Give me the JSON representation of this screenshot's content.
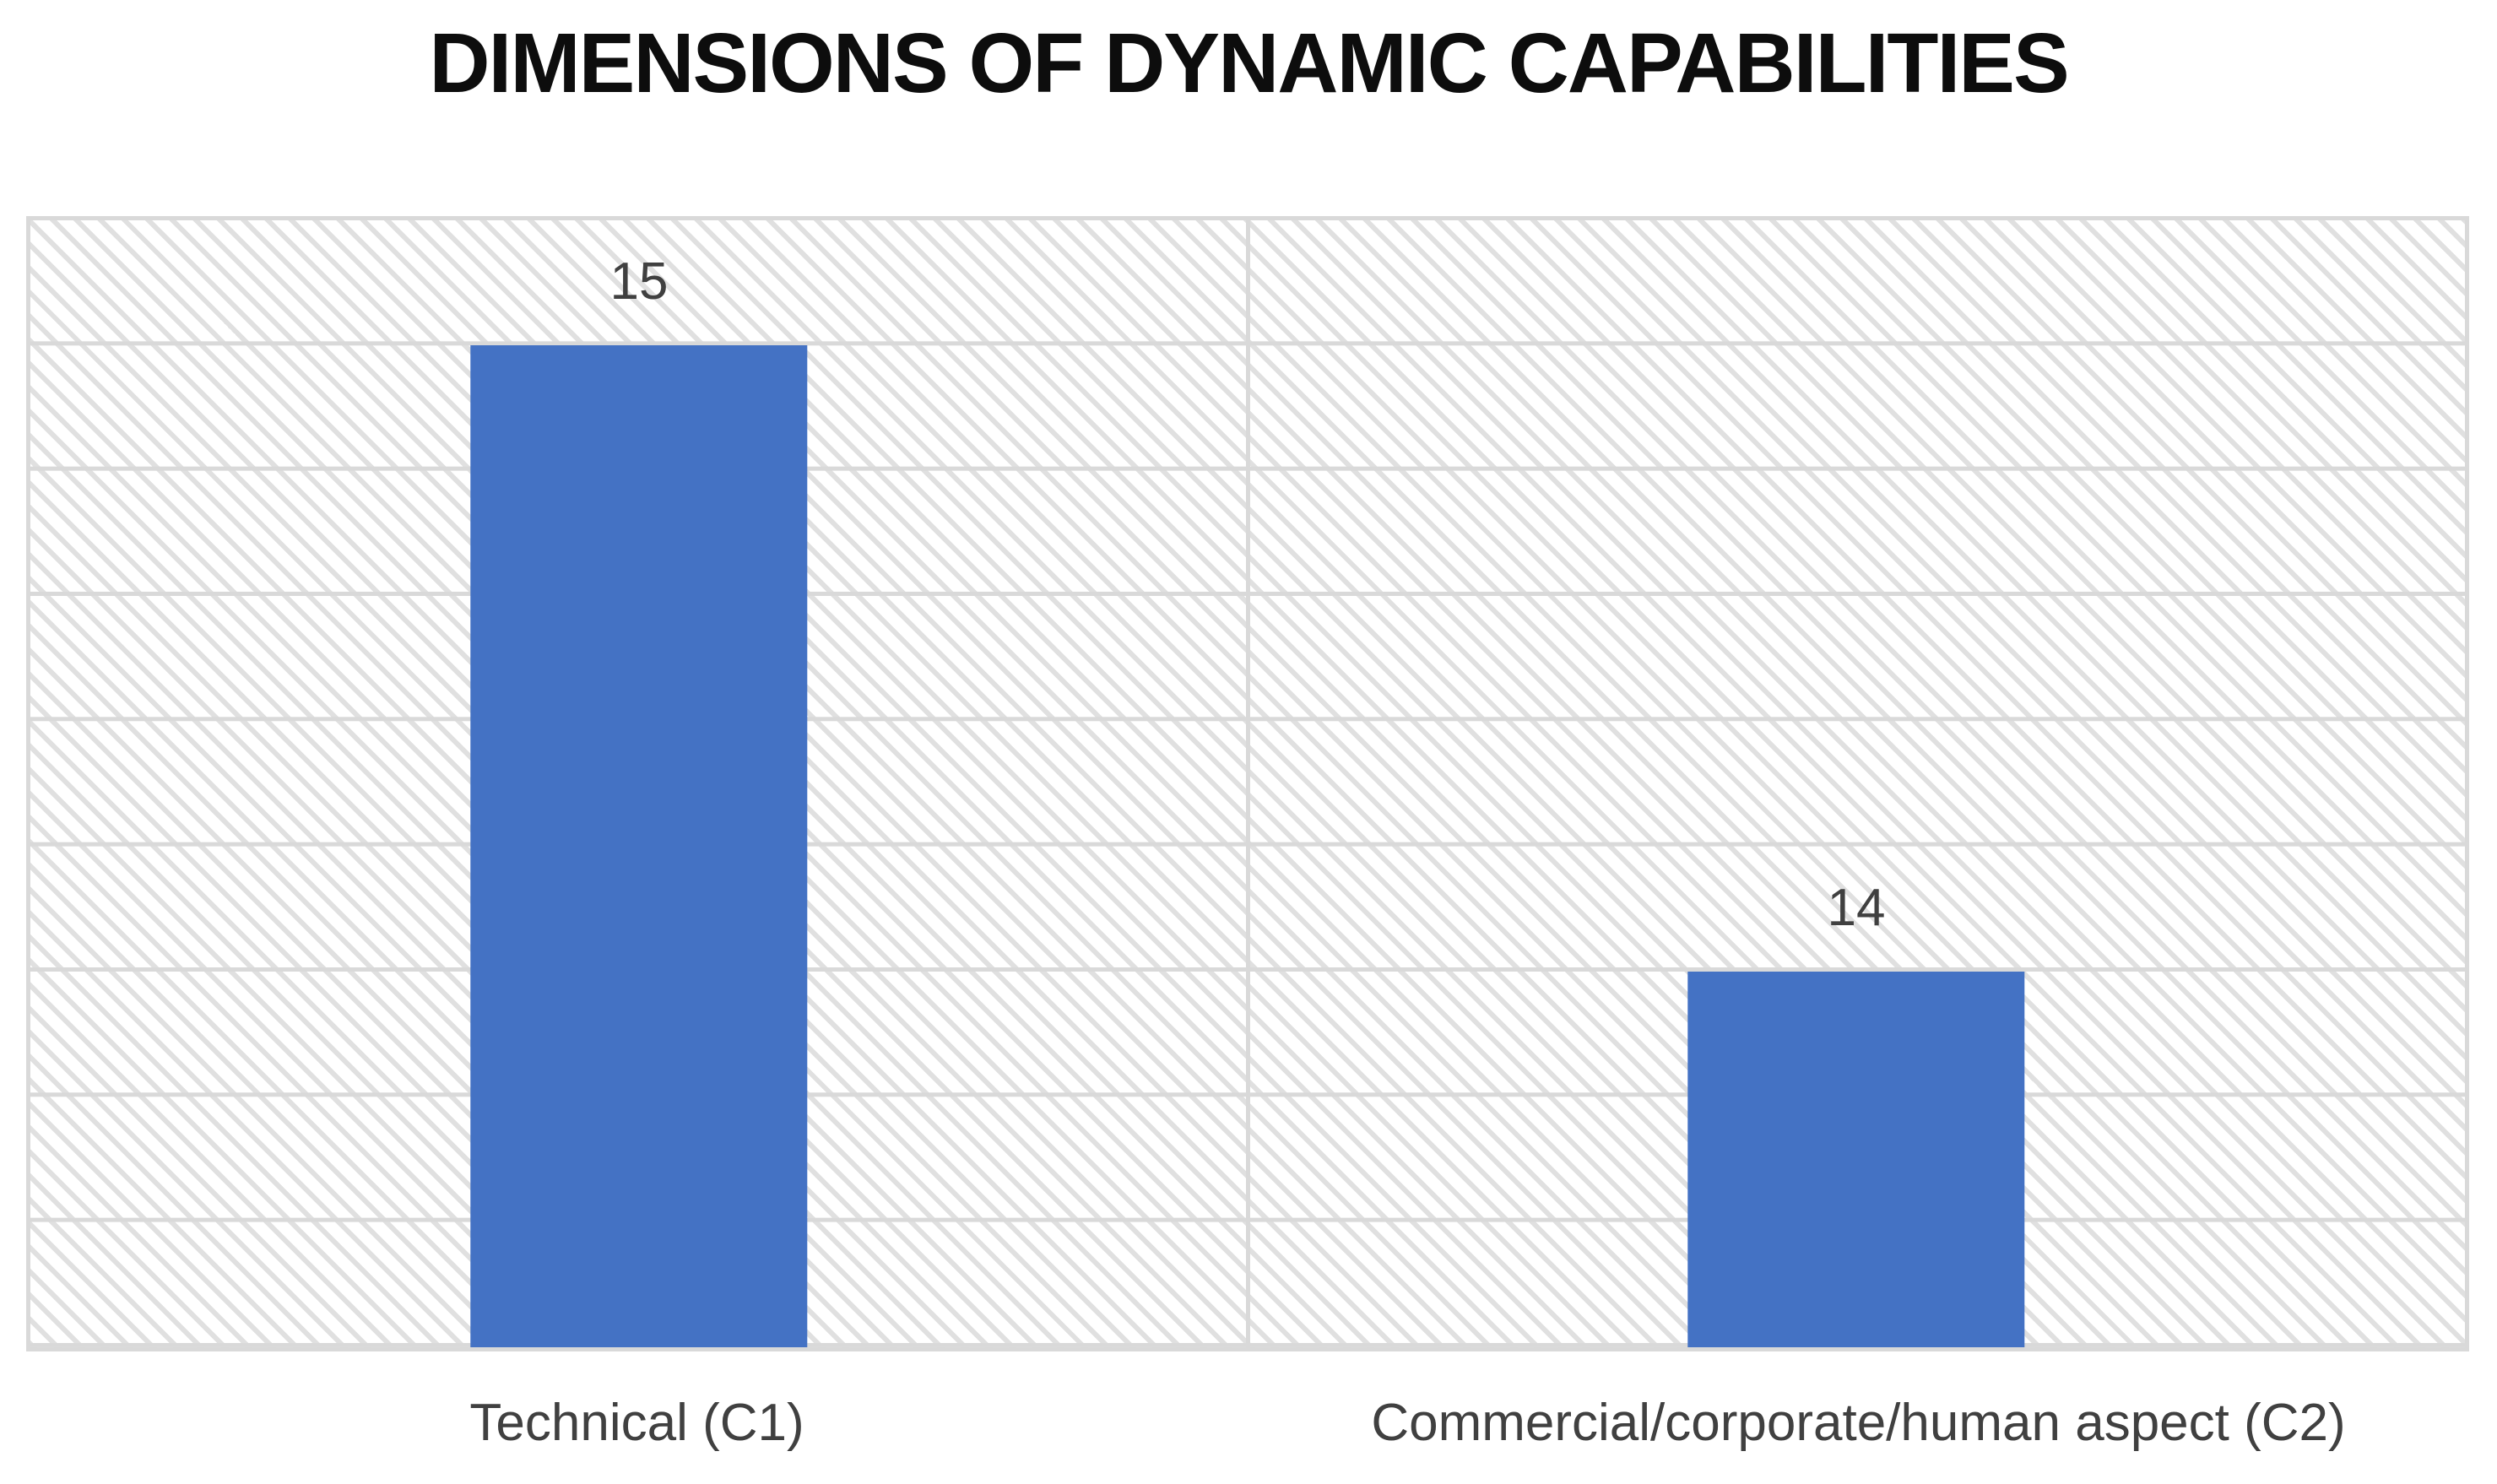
{
  "title": "DIMENSIONS OF DYNAMIC CAPABILITIES",
  "chart_data": {
    "type": "bar",
    "title": "DIMENSIONS OF DYNAMIC CAPABILITIES",
    "categories": [
      "Technical (C1)",
      "Commercial/corporate/human aspect (C2)"
    ],
    "values": [
      15,
      14
    ],
    "data_labels": [
      "15",
      "14"
    ],
    "xlabel": "",
    "ylabel": "",
    "ylim": [
      13.4,
      15.2
    ],
    "gridline_step": 0.2,
    "grid": "horizontal",
    "legend_position": "none",
    "bar_color": "#4472C4",
    "gridline_color": "#D9D9D9",
    "hatch_color": "#E0E0E0",
    "plot_fill_pattern": "light-downward-diagonal-hatch",
    "data_label_color": "#404040",
    "category_label_color": "#404040",
    "title_color": "#0D0D0D"
  }
}
